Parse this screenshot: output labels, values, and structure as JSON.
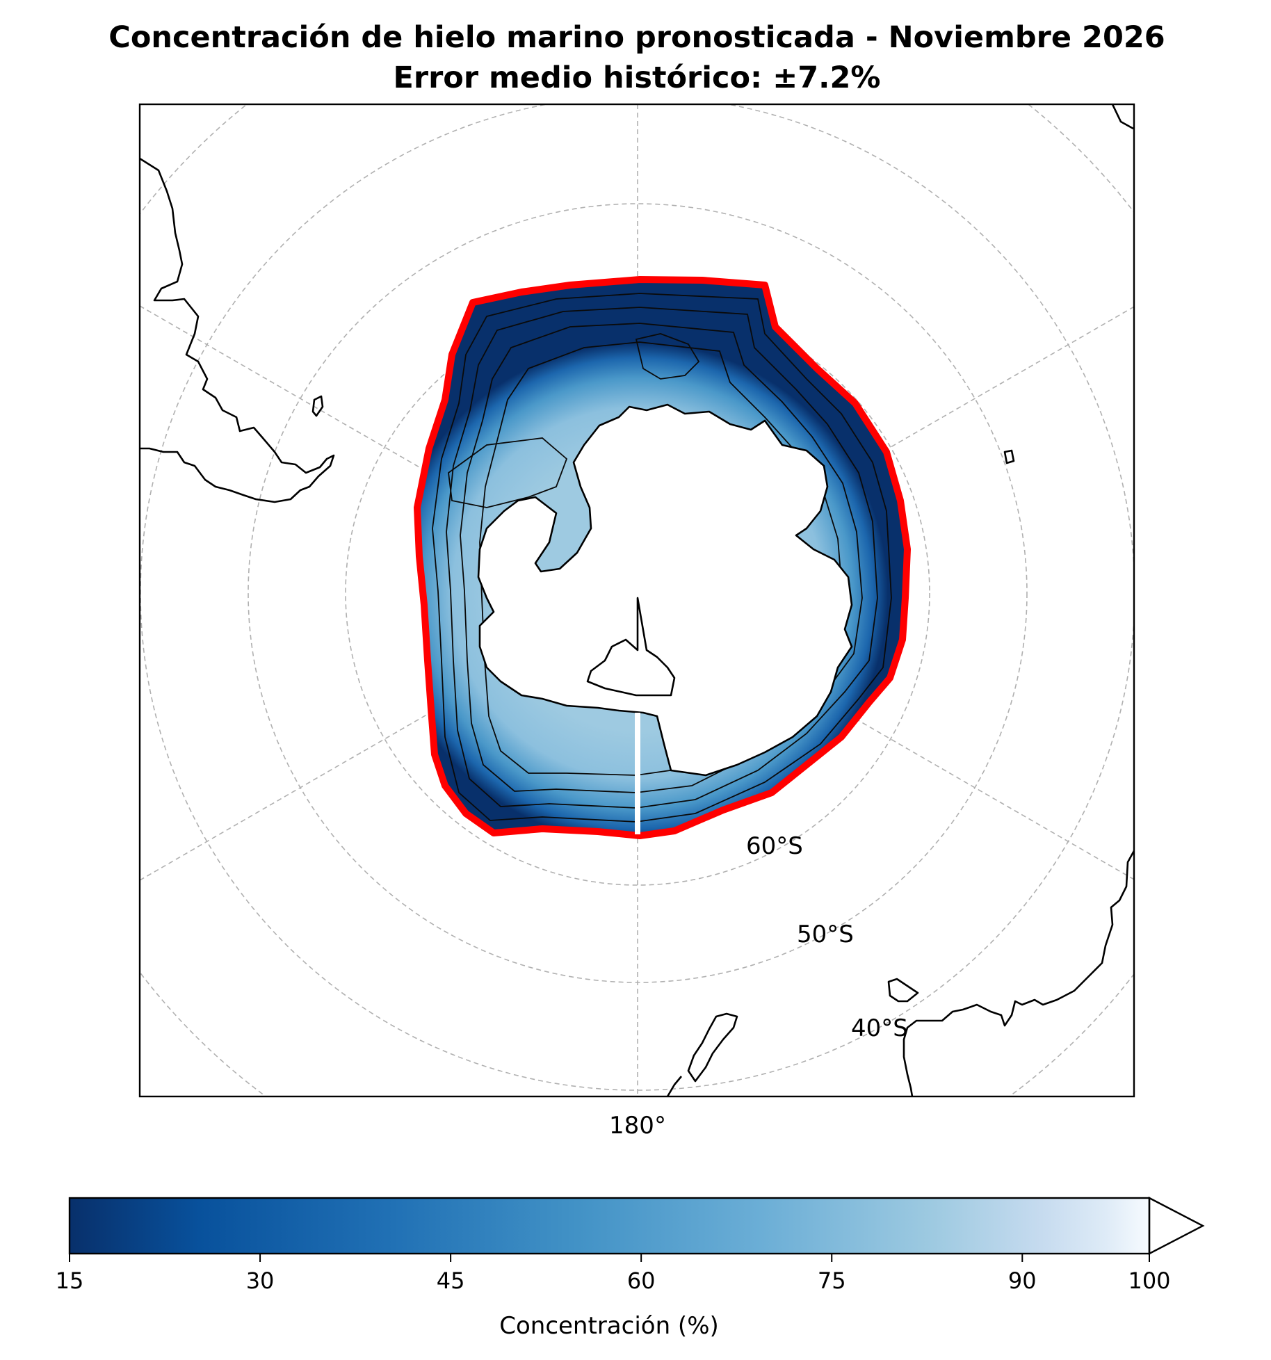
{
  "title_line1": "Concentración de hielo marino pronosticada - Noviembre 2026",
  "title_line2": "Error medio histórico: ±7.2%",
  "map": {
    "projection": "south-polar-stereographic",
    "central_longitude": "180°",
    "latitude_labels": [
      "60°S",
      "50°S",
      "40°S"
    ],
    "ice_edge_color": "#ff0000",
    "land_fill": "#ffffff",
    "contour_line_color": "#000000"
  },
  "colorbar": {
    "label": "Concentración (%)",
    "ticks": [
      "15",
      "30",
      "45",
      "60",
      "75",
      "90",
      "100"
    ],
    "min": 15,
    "max": 100,
    "extend": "max",
    "colormap": "Blues_r",
    "colors": [
      "#08306b",
      "#08519c",
      "#2171b5",
      "#4292c6",
      "#6baed6",
      "#9ecae1",
      "#c6dbef",
      "#deebf7",
      "#f7fbff"
    ]
  }
}
